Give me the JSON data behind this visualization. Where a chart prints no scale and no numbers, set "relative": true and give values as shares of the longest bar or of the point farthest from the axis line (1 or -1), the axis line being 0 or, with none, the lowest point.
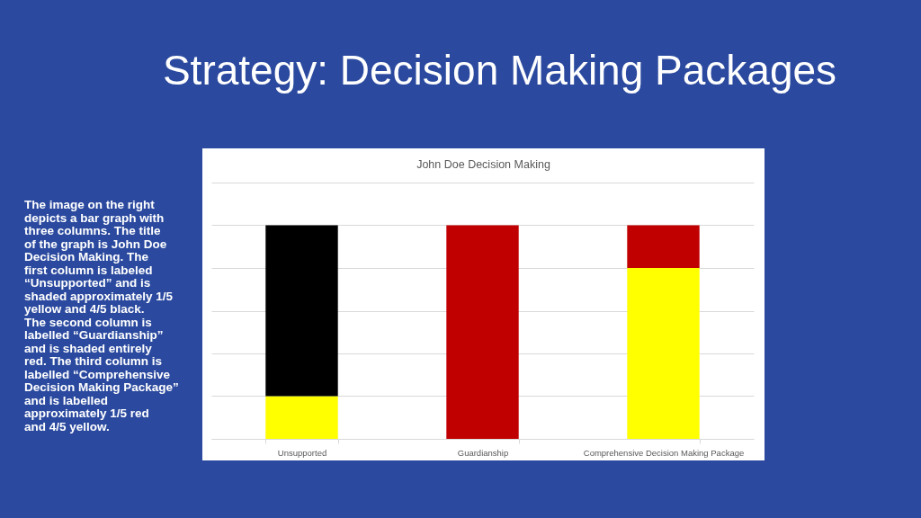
{
  "chart_data": {
    "type": "bar",
    "title": "Strategy: Decision Making Packages",
    "subtitle": "John Doe Decision Making",
    "categories": [
      "Unsupported",
      "Guardianship",
      "Comprehensive Decision Making Package"
    ],
    "series": [
      {
        "color": "#ffff00",
        "values": [
          0.2,
          null,
          0.8
        ]
      },
      {
        "color": "#000000",
        "values": [
          0.8,
          null,
          null
        ]
      },
      {
        "color": "#c00000",
        "values": [
          null,
          1.0,
          0.2
        ]
      }
    ],
    "stacked": true,
    "relative": true,
    "grid": "y",
    "annotations": [
      "The image on the right depicts a bar graph with three columns. The title of the graph is John Doe Decision Making. The first column is labeled “Unsupported” and is shaded approximately 1/5 yellow and 4/5 black. The second column is labelled “Guardianship” and is shaded entirely red. The third column is labelled “Comprehensive Decision Making Package” and is labelled approximately 1/5 red and 4/5 yellow."
    ]
  }
}
